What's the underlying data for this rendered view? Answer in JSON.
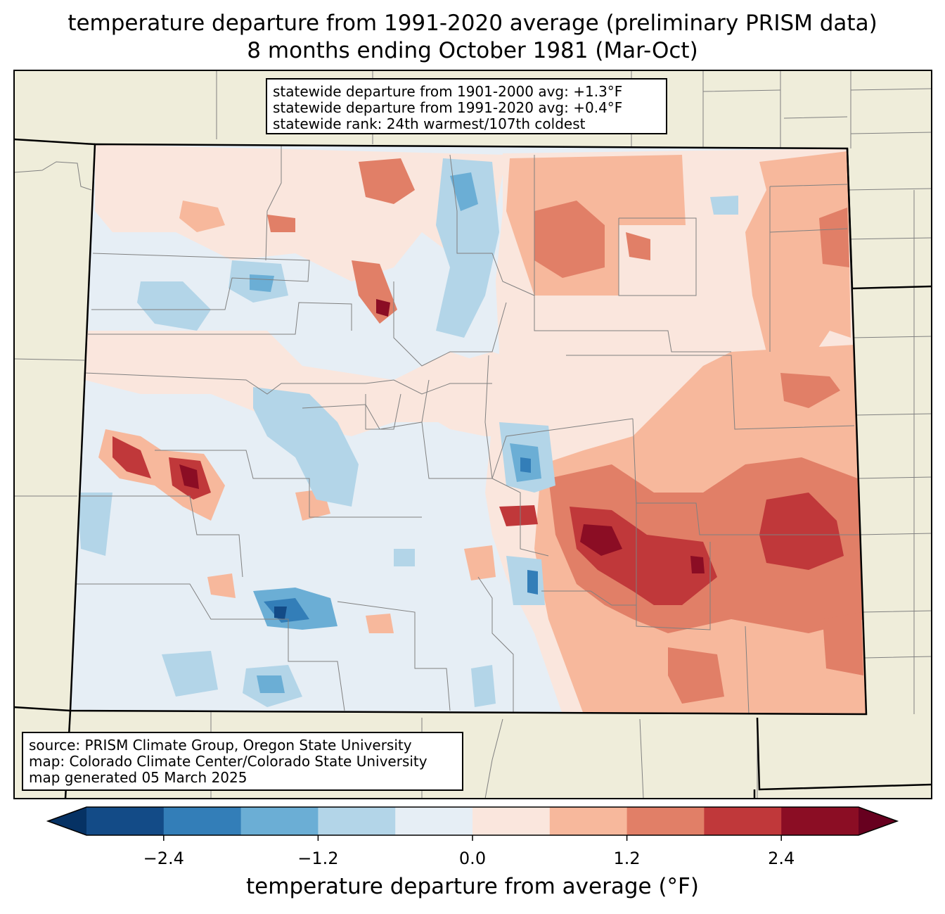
{
  "title": {
    "line1": "temperature departure from 1991-2020 average (preliminary PRISM data)",
    "line2": "8 months ending October 1981 (Mar-Oct)"
  },
  "stats": {
    "line1": "statewide departure from 1901-2000 avg: +1.3°F",
    "line2": "statewide departure from 1991-2020 avg: +0.4°F",
    "line3": "statewide rank: 24th warmest/107th coldest"
  },
  "credits": {
    "line1": "source: PRISM Climate Group, Oregon State University",
    "line2": "map: Colorado Climate Center/Colorado State University",
    "line3": "map generated 05 March 2025"
  },
  "chart_data": {
    "type": "heatmap",
    "region": "Colorado",
    "variable": "temperature departure from average (°F)",
    "colorbar": {
      "label": "temperature departure from average (°F)",
      "bounds": [
        -3.0,
        -2.4,
        -1.8,
        -1.2,
        -0.6,
        0.0,
        0.6,
        1.2,
        1.8,
        2.4,
        3.0
      ],
      "tick_values": [
        -2.4,
        -1.2,
        0.0,
        1.2,
        2.4
      ],
      "tick_labels": [
        "−2.4",
        "−1.2",
        "0.0",
        "1.2",
        "2.4"
      ],
      "colors": [
        "#134b87",
        "#337eb8",
        "#6baed5",
        "#b3d5e8",
        "#e6eef5",
        "#fae6dd",
        "#f7b89c",
        "#e17f67",
        "#c0383a",
        "#8b0d24"
      ],
      "under_color": "#063264",
      "over_color": "#67001f",
      "extend": "both"
    }
  },
  "colors": {
    "land": "#efedda",
    "county_line": "#808080",
    "state_line": "#000000"
  }
}
